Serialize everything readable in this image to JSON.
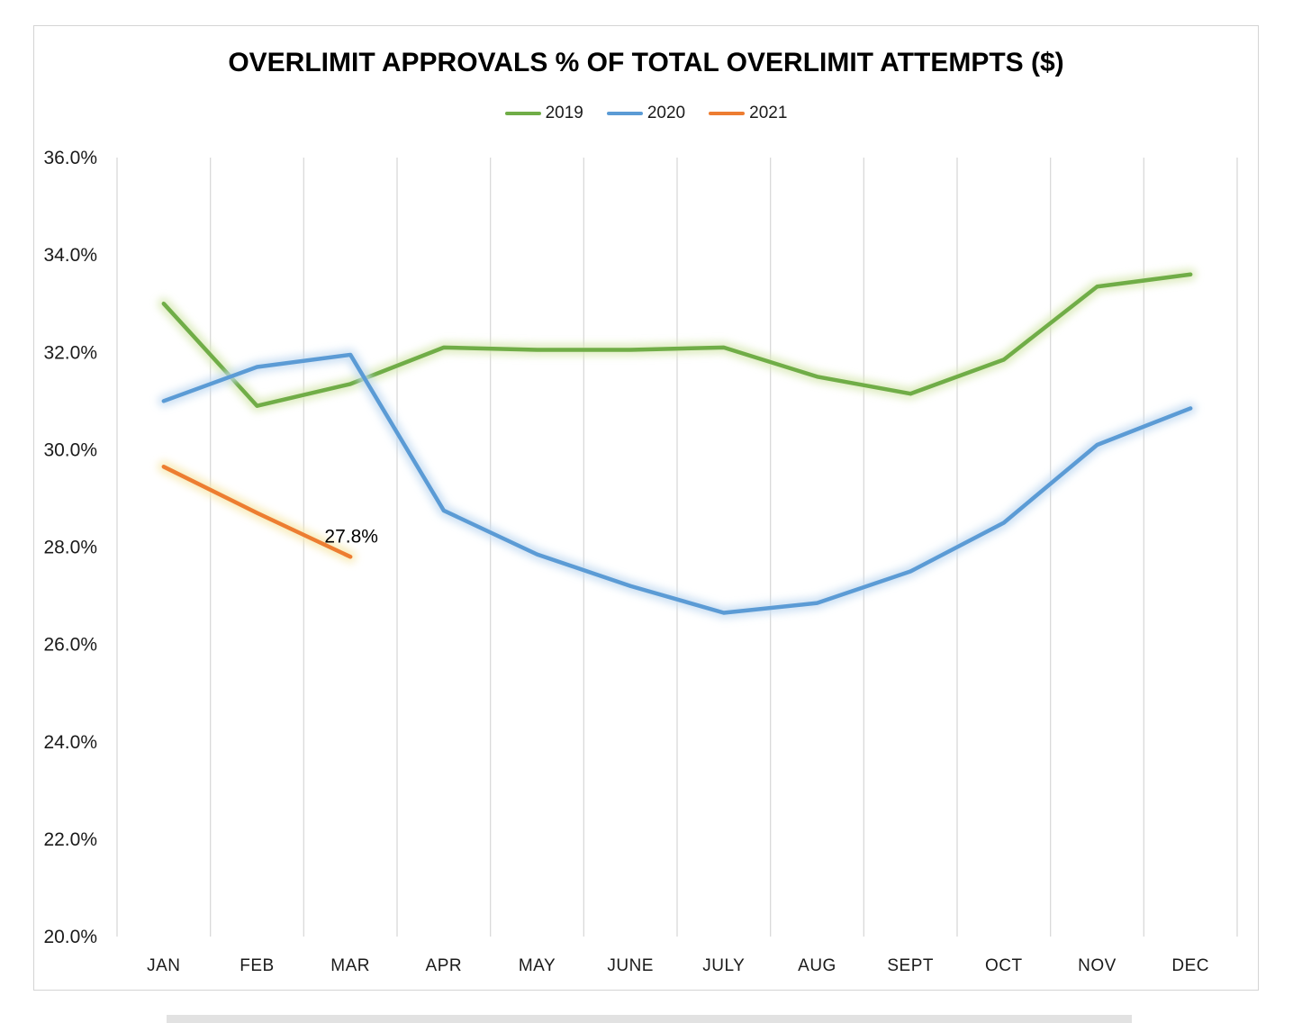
{
  "page": {
    "background": "#ffffff",
    "frame_border_color": "#d4d4d4",
    "bottom_strip_color": "#e2e2e2"
  },
  "chart_data": {
    "type": "line",
    "title": "OVERLIMIT APPROVALS % OF TOTAL OVERLIMIT ATTEMPTS ($)",
    "categories": [
      "JAN",
      "FEB",
      "MAR",
      "APR",
      "MAY",
      "JUNE",
      "JULY",
      "AUG",
      "SEPT",
      "OCT",
      "NOV",
      "DEC"
    ],
    "y_axis": {
      "min": 20.0,
      "max": 36.0,
      "step": 2.0,
      "decimals": 1,
      "suffix": "%",
      "label_color": "#1a1a1a"
    },
    "grid": {
      "vertical": true,
      "horizontal": false,
      "color": "#d9d9d9"
    },
    "legend_position": "top",
    "series": [
      {
        "name": "2019",
        "color": "#70AD47",
        "glow_color": "#d9e9b6",
        "values": [
          33.0,
          30.9,
          31.35,
          32.1,
          32.05,
          32.05,
          32.1,
          31.5,
          31.15,
          31.85,
          33.35,
          33.6
        ]
      },
      {
        "name": "2020",
        "color": "#5B9BD5",
        "glow_color": "#c5dcf2",
        "values": [
          31.0,
          31.7,
          31.95,
          28.75,
          27.85,
          27.2,
          26.65,
          26.85,
          27.5,
          28.5,
          30.1,
          30.85
        ]
      },
      {
        "name": "2021",
        "color": "#ED7D31",
        "glow_color": "#f6e8ae",
        "values": [
          29.65,
          28.7,
          27.8
        ]
      }
    ],
    "annotations": [
      {
        "text": "27.8%",
        "series": "2021",
        "category": "MAR"
      }
    ]
  }
}
